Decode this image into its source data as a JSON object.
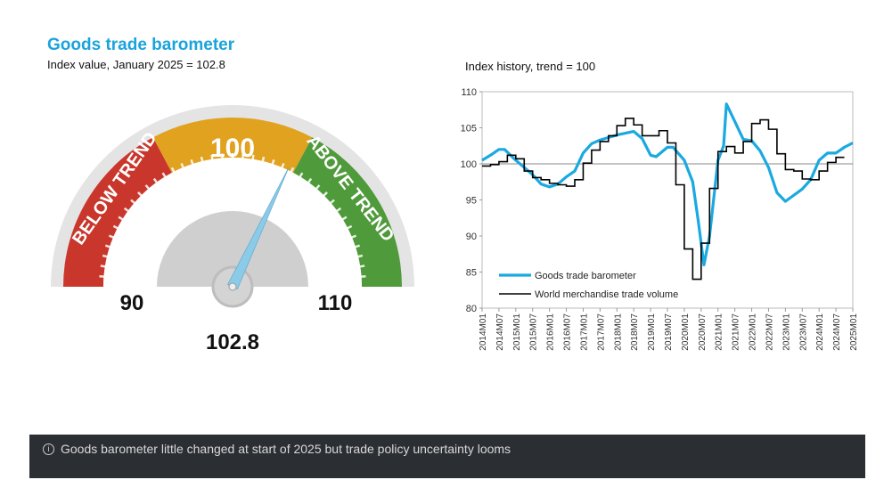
{
  "header": {
    "title": "Goods trade barometer",
    "subtitle": "Index value, January 2025 = 102.8"
  },
  "gauge": {
    "value": 102.8,
    "value_label": "102.8",
    "min": 90,
    "max": 110,
    "min_label": "90",
    "max_label": "110",
    "mid_label": "100",
    "below_label": "BELOW TREND",
    "above_label": "ABOVE TREND",
    "colors": {
      "below": "#c9372c",
      "neutral": "#e0a21f",
      "above": "#4f9a3a",
      "needle": "#8ccbe8"
    }
  },
  "chart_data": {
    "type": "line",
    "title": "Index history, trend = 100",
    "xlabel": "",
    "ylabel": "",
    "ylim": [
      80,
      110
    ],
    "yticks": [
      80,
      85,
      90,
      95,
      100,
      105,
      110
    ],
    "xticks": [
      "2014M01",
      "2014M07",
      "2015M01",
      "2015M07",
      "2016M01",
      "2016M07",
      "2017M01",
      "2017M07",
      "2018M01",
      "2018M07",
      "2019M01",
      "2019M07",
      "2020M01",
      "2020M07",
      "2021M01",
      "2021M07",
      "2022M01",
      "2022M07",
      "2023M01",
      "2023M07",
      "2024M01",
      "2024M07",
      "2025M01"
    ],
    "reference_line": 100,
    "legend_position": "bottom-left",
    "series": [
      {
        "name": "Goods trade barometer",
        "color": "#1aa9e0",
        "x_month_index": [
          0,
          3,
          6,
          8,
          12,
          18,
          21,
          24,
          27,
          30,
          33,
          36,
          39,
          42,
          48,
          54,
          57,
          60,
          62,
          66,
          68,
          72,
          75,
          77,
          79,
          81,
          84,
          86,
          87,
          88,
          93,
          96,
          99,
          102,
          105,
          108,
          114,
          117,
          120,
          123,
          126,
          129,
          132
        ],
        "values": [
          100.5,
          101.2,
          102.0,
          102.0,
          100.5,
          98.5,
          97.2,
          96.8,
          97.2,
          98.2,
          99.0,
          101.5,
          102.8,
          103.3,
          104.0,
          104.5,
          103.5,
          101.2,
          101.0,
          102.3,
          102.3,
          100.5,
          97.5,
          92.0,
          86.0,
          90.0,
          100.5,
          102.5,
          108.3,
          107.5,
          103.4,
          103.2,
          101.8,
          99.5,
          96.0,
          94.8,
          96.5,
          97.8,
          100.5,
          101.5,
          101.5,
          102.3,
          102.9
        ]
      },
      {
        "name": "World merchandise trade volume",
        "color": "#000000",
        "step": "quarterly",
        "values": [
          99.7,
          99.9,
          100.3,
          101.2,
          100.7,
          99.0,
          98.1,
          97.8,
          97.3,
          97.1,
          96.9,
          97.8,
          100.1,
          101.9,
          103.1,
          103.9,
          105.3,
          106.3,
          105.4,
          103.9,
          103.9,
          104.6,
          102.9,
          97.1,
          88.2,
          84.0,
          89.0,
          96.6,
          101.7,
          102.4,
          101.5,
          103.1,
          105.6,
          106.1,
          104.8,
          101.4,
          99.2,
          99.0,
          97.9,
          97.8,
          99.0,
          100.2,
          100.9
        ]
      }
    ]
  },
  "footer": {
    "icon": "info-icon",
    "text": "Goods barometer little changed at start of 2025 but trade policy uncertainty looms"
  }
}
